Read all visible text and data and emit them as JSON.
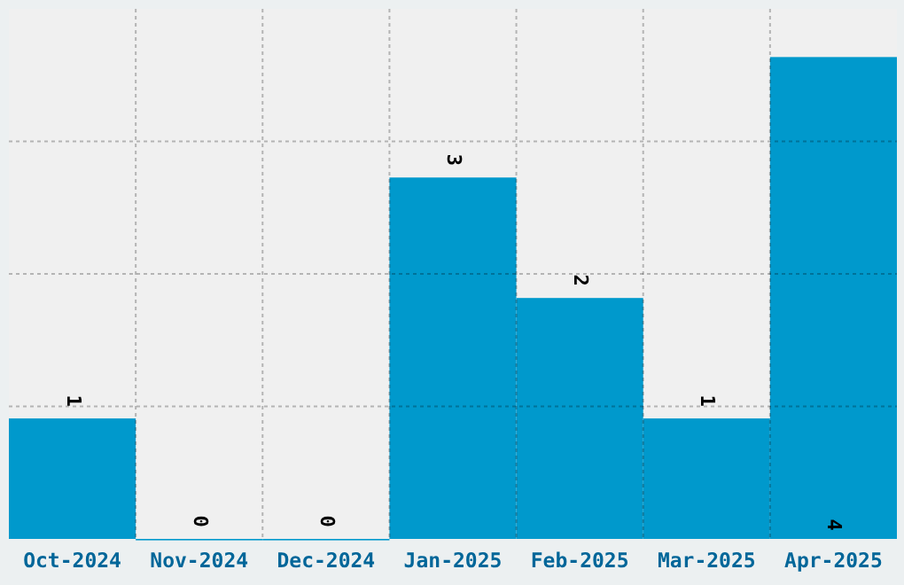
{
  "chart_data": {
    "type": "bar",
    "categories": [
      "Oct-2024",
      "Nov-2024",
      "Dec-2024",
      "Jan-2025",
      "Feb-2025",
      "Mar-2025",
      "Apr-2025"
    ],
    "values": [
      1,
      0,
      0,
      3,
      2,
      1,
      4
    ],
    "color": "#0099cc",
    "ylim": [
      0,
      4.4
    ],
    "yticks": [
      {
        "value": 1.1,
        "label": null
      },
      {
        "value": 2.2,
        "label": null
      },
      {
        "value": 3.3,
        "label": null
      }
    ],
    "tick_labels": "x",
    "grid": true,
    "data_labels": true
  }
}
